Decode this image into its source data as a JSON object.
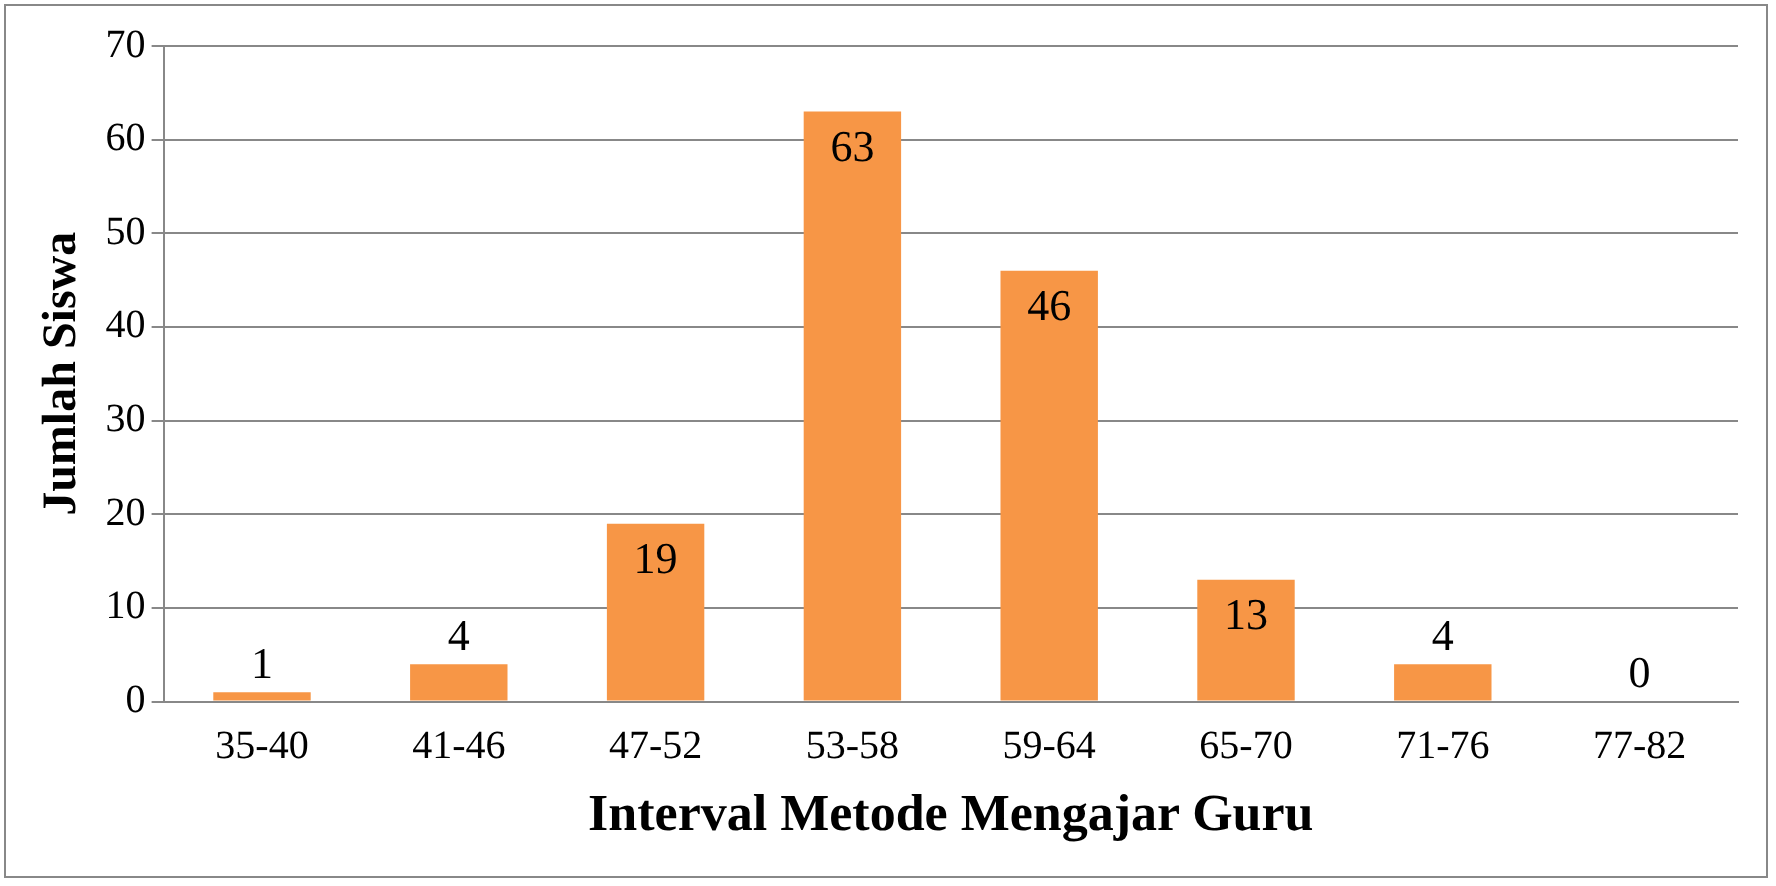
{
  "chart_data": {
    "type": "bar",
    "xlabel": "Interval Metode Mengajar Guru",
    "ylabel": "Jumlah Siswa",
    "categories": [
      "35-40",
      "41-46",
      "47-52",
      "53-58",
      "59-64",
      "65-70",
      "71-76",
      "77-82"
    ],
    "values": [
      1,
      4,
      19,
      63,
      46,
      13,
      4,
      0
    ],
    "color": "#f79646",
    "ylim": [
      0,
      70
    ],
    "yticks": [
      0,
      10,
      20,
      30,
      40,
      50,
      60,
      70
    ],
    "grid": "y",
    "legend": false,
    "data_labels": true
  }
}
